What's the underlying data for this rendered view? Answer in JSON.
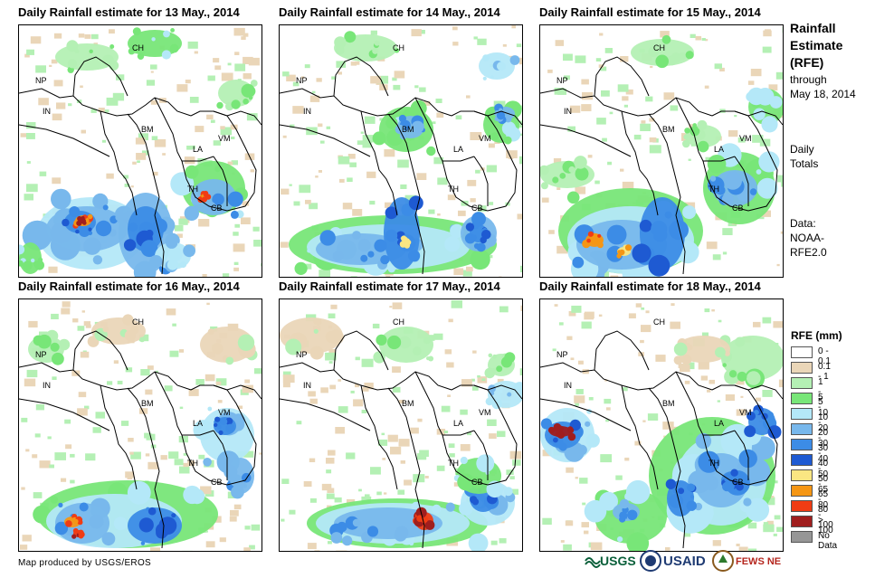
{
  "panels": [
    {
      "title": "Daily Rainfall estimate for 13 May., 2014"
    },
    {
      "title": "Daily Rainfall estimate for 14 May., 2014"
    },
    {
      "title": "Daily Rainfall estimate for 15 May., 2014"
    },
    {
      "title": "Daily Rainfall estimate for 16 May., 2014"
    },
    {
      "title": "Daily Rainfall estimate for 17 May., 2014"
    },
    {
      "title": "Daily Rainfall estimate for 18 May., 2014"
    }
  ],
  "country_labels": {
    "CH": "CH",
    "NP": "NP",
    "IN": "IN",
    "BM": "BM",
    "LA": "LA",
    "VM": "VM",
    "TH": "TH",
    "CB": "CB"
  },
  "sidebar": {
    "title_line1": "Rainfall",
    "title_line2": "Estimate",
    "title_line3": "(RFE)",
    "through": "through",
    "date": "May 18, 2014",
    "daily": "Daily",
    "totals": "Totals",
    "data_label": "Data:",
    "data_src1": "NOAA-",
    "data_src2": "RFE2.0"
  },
  "legend": {
    "title": "RFE (mm)",
    "items": [
      {
        "label": "0 - 0.1",
        "color": "#ffffff"
      },
      {
        "label": "0.1 - 1",
        "color": "#ead6b8"
      },
      {
        "label": "1 - 5",
        "color": "#b4f0b4"
      },
      {
        "label": "5 - 10",
        "color": "#78e678"
      },
      {
        "label": "10 - 20",
        "color": "#b4e8f8"
      },
      {
        "label": "20 - 30",
        "color": "#78b8ec"
      },
      {
        "label": "30 - 40",
        "color": "#3c8ce6"
      },
      {
        "label": "40 - 50",
        "color": "#1e5ad2"
      },
      {
        "label": "50 - 65",
        "color": "#fae682"
      },
      {
        "label": "65 - 80",
        "color": "#f59614"
      },
      {
        "label": "80 - 100",
        "color": "#f03c14"
      },
      {
        "label": "> 100",
        "color": "#a01e1e"
      },
      {
        "label": "No Data",
        "color": "#969696"
      }
    ]
  },
  "credit": "Map produced by USGS/EROS",
  "logos": {
    "usgs": "USGS",
    "usaid": "USAID",
    "fewsnet": "FEWS NET"
  }
}
